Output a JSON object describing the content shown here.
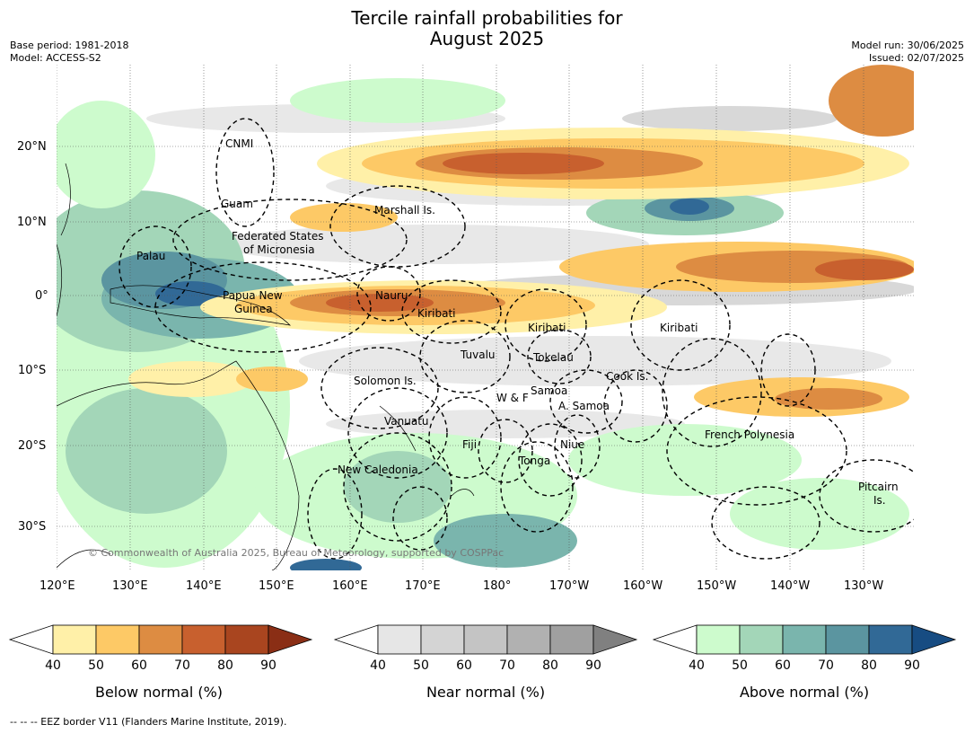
{
  "title_line1": "Tercile rainfall probabilities for",
  "title_line2": "August 2025",
  "meta_left": [
    "Base period: 1981-2018",
    "Model: ACCESS-S2"
  ],
  "meta_right": [
    "Model run: 30/06/2025",
    "Issued: 02/07/2025"
  ],
  "lat_labels": [
    "20°N",
    "10°N",
    "0°",
    "10°S",
    "20°S",
    "30°S"
  ],
  "lon_labels": [
    "120°E",
    "130°E",
    "140°E",
    "150°E",
    "160°E",
    "170°E",
    "180°",
    "170°W",
    "160°W",
    "150°W",
    "140°W",
    "130°W"
  ],
  "places": [
    "CNMI",
    "Guam",
    "Marshall Is.",
    "Federated States",
    "of Micronesia",
    "Palau",
    "Papua New",
    "Guinea",
    "Nauru",
    "Kiribati",
    "Kiribati",
    "Kiribati",
    "Tuvalu",
    "Tokelau",
    "Cook Is.",
    "Solomon Is.",
    "Samoa",
    "W & F",
    "A. Samoa",
    "Vanuatu",
    "Fiji",
    "Niue",
    "Tonga",
    "French Polynesia",
    "New Caledonia",
    "Pitcairn",
    "Is."
  ],
  "copyright": "© Commonwealth of Australia 2025, Bureau of Meteorology, supported by COSPPac",
  "colorbars": [
    {
      "label": "Below normal (%)",
      "ticks": [
        "40",
        "50",
        "60",
        "70",
        "80",
        "90"
      ],
      "colors": [
        "#fff0a8",
        "#fdc966",
        "#dd8c42",
        "#c8602e",
        "#a9451f",
        "#8a2e15"
      ]
    },
    {
      "label": "Near normal (%)",
      "ticks": [
        "40",
        "50",
        "60",
        "70",
        "80",
        "90"
      ],
      "colors": [
        "#e6e6e6",
        "#d4d4d4",
        "#c4c4c4",
        "#b1b1b1",
        "#a0a0a0",
        "#808080"
      ]
    },
    {
      "label": "Above normal (%)",
      "ticks": [
        "40",
        "50",
        "60",
        "70",
        "80",
        "90"
      ],
      "colors": [
        "#cdfbcd",
        "#a3d6b8",
        "#7ab5ad",
        "#5b95a0",
        "#316996",
        "#174c82"
      ]
    }
  ],
  "footer": "--  --  -- EEZ border V11 (Flanders Marine Institute, 2019)."
}
